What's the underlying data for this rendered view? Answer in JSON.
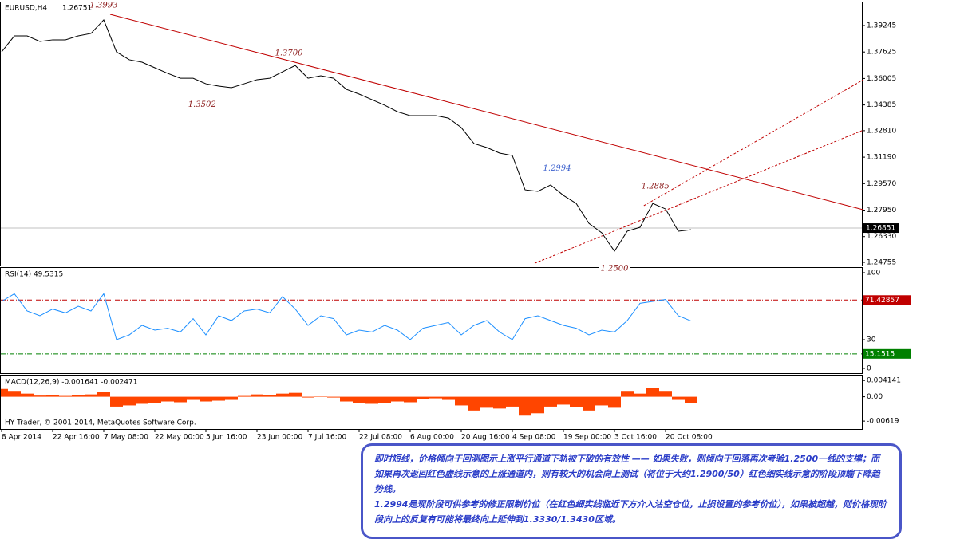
{
  "chart_data": [
    {
      "type": "line",
      "title": "EURUSD,H4",
      "last": 1.26751,
      "categories": [
        "8 Apr 2014",
        null,
        null,
        null,
        "22 Apr 16:00",
        null,
        null,
        null,
        "7 May 08:00",
        null,
        null,
        null,
        "22 May 00:00",
        null,
        null,
        null,
        "5 Jun 16:00",
        null,
        null,
        null,
        "23 Jun 00:00",
        null,
        null,
        null,
        "7 Jul 16:00",
        null,
        null,
        null,
        "22 Jul 08:00",
        null,
        null,
        null,
        "6 Aug 00:00",
        null,
        null,
        null,
        "20 Aug 16:00",
        null,
        null,
        null,
        "4 Sep 08:00",
        null,
        null,
        null,
        "19 Sep 00:00",
        null,
        null,
        null,
        "3 Oct 16:00",
        null,
        null,
        null,
        "20 Oct 08:00",
        null,
        null,
        null,
        null,
        null,
        null,
        null,
        null,
        null,
        null,
        null,
        null,
        null,
        null,
        null
      ],
      "color": "#000000",
      "values": [
        1.3763,
        1.3861,
        1.3861,
        1.3827,
        1.3837,
        1.3837,
        1.3861,
        1.3876,
        1.3959,
        1.3763,
        1.3715,
        1.37,
        1.3666,
        1.3632,
        1.3602,
        1.3602,
        1.3568,
        1.3554,
        1.3544,
        1.3568,
        1.3593,
        1.3602,
        1.3641,
        1.368,
        1.3602,
        1.3617,
        1.3602,
        1.3534,
        1.3505,
        1.3471,
        1.3437,
        1.3397,
        1.3373,
        1.3373,
        1.3373,
        1.3358,
        1.33,
        1.3202,
        1.3178,
        1.3144,
        1.3129,
        1.2919,
        1.291,
        1.2949,
        1.2885,
        1.2836,
        1.2714,
        1.2656,
        1.2544,
        1.2666,
        1.269,
        1.2836,
        1.2802,
        1.2666,
        1.2675,
        null,
        null,
        null,
        null,
        null,
        null,
        null,
        null,
        null,
        null,
        null,
        null,
        null
      ],
      "ylim": [
        1.2456,
        1.4066
      ],
      "yticks": [
        1.39245,
        1.37625,
        1.36005,
        1.34385,
        {
          "value": 1.3281,
          "label": "1.32810"
        },
        {
          "value": 1.3119,
          "label": "1.31190"
        },
        {
          "value": 1.2957,
          "label": "1.29570"
        },
        {
          "value": 1.2795,
          "label": "1.27950"
        },
        {
          "value": 1.2633,
          "label": "1.26330"
        },
        1.24755
      ],
      "current_price": 1.26851,
      "annotations": [
        {
          "value": 1.3993,
          "index": 8,
          "color": "#8b1a1a",
          "side": "above"
        },
        {
          "value": 1.37,
          "label": "1.3700",
          "index": 22.5,
          "color": "#8b1a1a",
          "side": "above"
        },
        {
          "value": 1.3502,
          "index": 15.7,
          "color": "#8b1a1a",
          "side": "below"
        },
        {
          "value": 1.2994,
          "index": 43.5,
          "color": "#3a5fcd",
          "side": "above"
        },
        {
          "value": 1.2885,
          "index": 51.2,
          "color": "#8b1a1a",
          "side": "above"
        },
        {
          "value": 1.25,
          "label": "1.2500",
          "index": 48,
          "color": "#8b1a1a",
          "side": "below"
        }
      ],
      "lines": [
        {
          "style": "solid",
          "color": "#c00000",
          "points": [
            [
              8.5,
              1.3993
            ],
            [
              67.5,
              1.2797
            ]
          ]
        },
        {
          "style": "dashed",
          "color": "#c00000",
          "points": [
            [
              41.75,
              1.247
            ],
            [
              67.5,
              1.3285
            ]
          ]
        },
        {
          "style": "dashed",
          "color": "#c00000",
          "points": [
            [
              50.3,
              1.2822
            ],
            [
              67.5,
              1.3593
            ]
          ]
        }
      ]
    },
    {
      "type": "line",
      "title": "RSI(14) 49.5315",
      "color": "#1e90ff",
      "values": [
        70,
        78,
        60,
        55,
        62,
        58,
        65,
        60,
        78,
        30,
        35,
        45,
        40,
        42,
        38,
        52,
        35,
        55,
        50,
        60,
        62,
        58,
        75,
        62,
        45,
        55,
        52,
        35,
        40,
        38,
        45,
        40,
        30,
        42,
        45,
        48,
        35,
        45,
        50,
        38,
        30,
        52,
        55,
        50,
        45,
        42,
        35,
        40,
        38,
        50,
        68,
        70,
        72,
        55,
        49.5,
        null,
        null,
        null,
        null,
        null,
        null,
        null,
        null,
        null,
        null,
        null,
        null,
        null
      ],
      "ylim": [
        -5,
        105
      ],
      "yticks": [
        100,
        30,
        0
      ],
      "levels": [
        {
          "value": 71.42857,
          "color": "#c00000"
        },
        {
          "value": 15.15152,
          "label": "15.1515",
          "color": "#008000"
        }
      ]
    },
    {
      "type": "bar",
      "title": "MACD(12,26,9) -0.001641 -0.002471",
      "color": "#ff4500",
      "values": [
        0.002,
        0.0015,
        0.0008,
        0.0003,
        0.0004,
        0.0002,
        0.0005,
        0.0006,
        0.0012,
        -0.0025,
        -0.0022,
        -0.0018,
        -0.0015,
        -0.0012,
        -0.0014,
        -0.0008,
        -0.0012,
        -0.001,
        -0.0008,
        0.0002,
        0.0006,
        0.0004,
        0.0008,
        0.001,
        -0.0002,
        0.0001,
        -0.0002,
        -0.0012,
        -0.0015,
        -0.0018,
        -0.0016,
        -0.0012,
        -0.0014,
        -0.0006,
        -0.0004,
        -0.0008,
        -0.0022,
        -0.0035,
        -0.0028,
        -0.003,
        -0.0025,
        -0.0048,
        -0.0042,
        -0.0025,
        -0.002,
        -0.0026,
        -0.0035,
        -0.0022,
        -0.0028,
        0.0015,
        0.0008,
        0.0022,
        0.0015,
        -0.0008,
        -0.0016,
        null,
        null,
        null,
        null,
        null,
        null,
        null,
        null,
        null,
        null,
        null,
        null,
        null
      ],
      "ylim": [
        -0.0082,
        0.0054
      ],
      "yticks": [
        0.004141,
        {
          "value": 0,
          "label": "0.00"
        },
        {
          "value": -0.006192,
          "label": "-0.00619"
        }
      ]
    }
  ],
  "copyright": "HY Trader, © 2001-2014, MetaQuotes Software Corp.",
  "note": {
    "paragraphs": [
      "即时短线，价格倾向于回测图示上涨平行通道下轨被下破的有效性 —— 如果失败，则倾向于回落再次考验1.2500一线的支撑；而如果再次返回红色虚线示意的上涨通道内，则有较大的机会向上测试（将位于大约1.2900/50）红色细实线示意的阶段顶端下降趋势线。",
      "1.2994是现阶段可供参考的修正限制价位（在红色细实线临近下方介入沽空仓位，止损设置的参考价位），如果被超越，则价格现阶段向上的反复有可能将最终向上延伸到1.3330/1.3430区域。"
    ]
  }
}
